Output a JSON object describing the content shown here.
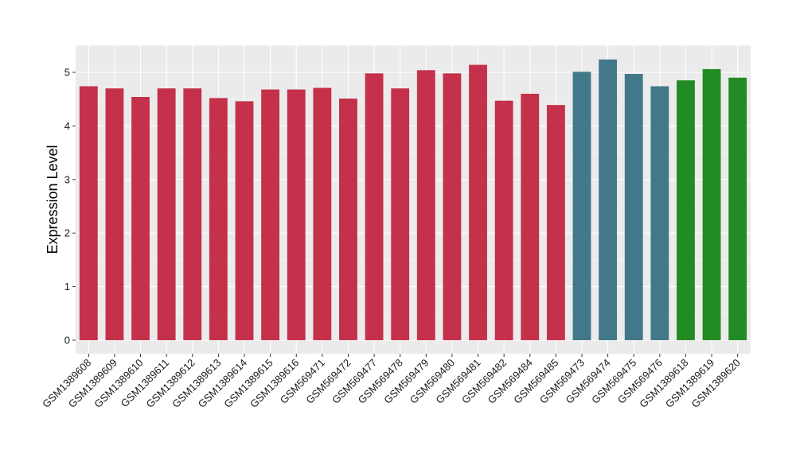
{
  "chart_data": {
    "type": "bar",
    "title": "",
    "xlabel": "",
    "ylabel": "Expression Level",
    "ylim": [
      0,
      5.5
    ],
    "yticks": [
      0,
      1,
      2,
      3,
      4,
      5
    ],
    "grid": true,
    "legend": "none",
    "colors": {
      "red": "#c5304a",
      "teal": "#41788a",
      "green": "#238b23",
      "panel": "#ebebeb",
      "gridline": "#ffffff"
    },
    "categories": [
      "GSM1389608",
      "GSM1389609",
      "GSM1389610",
      "GSM1389611",
      "GSM1389612",
      "GSM1389613",
      "GSM1389614",
      "GSM1389615",
      "GSM1389616",
      "GSM569471",
      "GSM569472",
      "GSM569477",
      "GSM569478",
      "GSM569479",
      "GSM569480",
      "GSM569481",
      "GSM569482",
      "GSM569484",
      "GSM569485",
      "GSM569473",
      "GSM569474",
      "GSM569475",
      "GSM569476",
      "GSM1389618",
      "GSM1389619",
      "GSM1389620"
    ],
    "values": [
      4.74,
      4.7,
      4.54,
      4.7,
      4.7,
      4.52,
      4.46,
      4.68,
      4.68,
      4.71,
      4.51,
      4.98,
      4.7,
      5.04,
      4.98,
      5.14,
      4.47,
      4.6,
      4.39,
      5.01,
      5.24,
      4.97,
      4.74,
      4.85,
      5.06,
      4.9
    ],
    "bar_colors": [
      "red",
      "red",
      "red",
      "red",
      "red",
      "red",
      "red",
      "red",
      "red",
      "red",
      "red",
      "red",
      "red",
      "red",
      "red",
      "red",
      "red",
      "red",
      "red",
      "teal",
      "teal",
      "teal",
      "teal",
      "green",
      "green",
      "green"
    ]
  }
}
